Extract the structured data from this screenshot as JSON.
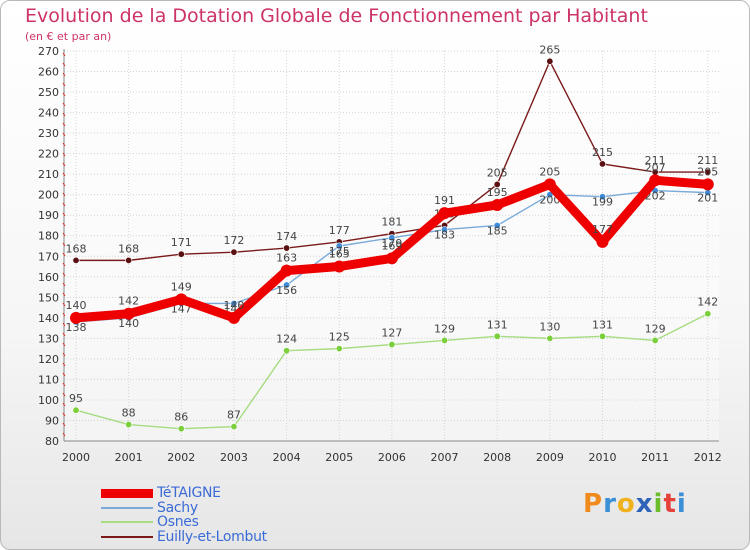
{
  "title": "Evolution de la Dotation Globale de Fonctionnement par Habitant",
  "subtitle": "(en € et par an)",
  "logo": {
    "text": "Proxiti",
    "letters": [
      "P",
      "r",
      "o",
      "x",
      "i",
      "t",
      "i"
    ],
    "colors": [
      "#f08a1c",
      "#3a8fd6",
      "#f0b21c",
      "#2f63b8",
      "#6bbd2a",
      "#e5403a",
      "#3a8fd6"
    ]
  },
  "chart_data": {
    "type": "line",
    "title": "Evolution de la Dotation Globale de Fonctionnement par Habitant",
    "subtitle": "(en € et par an)",
    "xlabel": "",
    "ylabel": "",
    "x": [
      2000,
      2001,
      2002,
      2003,
      2004,
      2005,
      2006,
      2007,
      2008,
      2009,
      2010,
      2011,
      2012
    ],
    "x_tick_labels": [
      "2000",
      "2001",
      "2002",
      "2003",
      "2004",
      "2005",
      "2006",
      "2007",
      "2008",
      "2009",
      "2010",
      "2011",
      "2012"
    ],
    "ylim": [
      80,
      270
    ],
    "y_ticks": [
      80,
      90,
      100,
      110,
      120,
      130,
      140,
      150,
      160,
      170,
      180,
      190,
      200,
      210,
      220,
      230,
      240,
      250,
      260,
      270
    ],
    "y_tick_labels": [
      "80",
      "90",
      "100",
      "110",
      "120",
      "130",
      "140",
      "150",
      "160",
      "170",
      "180",
      "190",
      "200",
      "210",
      "220",
      "230",
      "240",
      "250",
      "260",
      "270"
    ],
    "grid": true,
    "legend_position": "bottom-left",
    "series": [
      {
        "name": "Euilly-et-Lombut",
        "color": "#7a1a1a",
        "marker": "#5a1010",
        "width": "thin",
        "values": [
          168,
          168,
          171,
          172,
          174,
          177,
          181,
          185,
          205,
          265,
          215,
          211,
          211
        ]
      },
      {
        "name": "Osnes",
        "color": "#a6dc82",
        "marker": "#7ccf3c",
        "width": "thin",
        "values": [
          95,
          88,
          86,
          87,
          124,
          125,
          127,
          129,
          131,
          130,
          131,
          129,
          142
        ]
      },
      {
        "name": "Sachy",
        "color": "#7aaad8",
        "marker": "#3e8ad8",
        "width": "thin",
        "values": [
          138,
          140,
          147,
          147,
          156,
          175,
          179,
          183,
          185,
          200,
          199,
          202,
          201
        ]
      },
      {
        "name": "TéTAIGNE",
        "color": "#ee0000",
        "marker": "#ee0000",
        "width": "thick",
        "values": [
          140,
          142,
          149,
          140,
          163,
          165,
          169,
          191,
          195,
          205,
          177,
          207,
          205
        ]
      }
    ],
    "legend_order": [
      "TéTAIGNE",
      "Sachy",
      "Osnes",
      "Euilly-et-Lombut"
    ]
  }
}
